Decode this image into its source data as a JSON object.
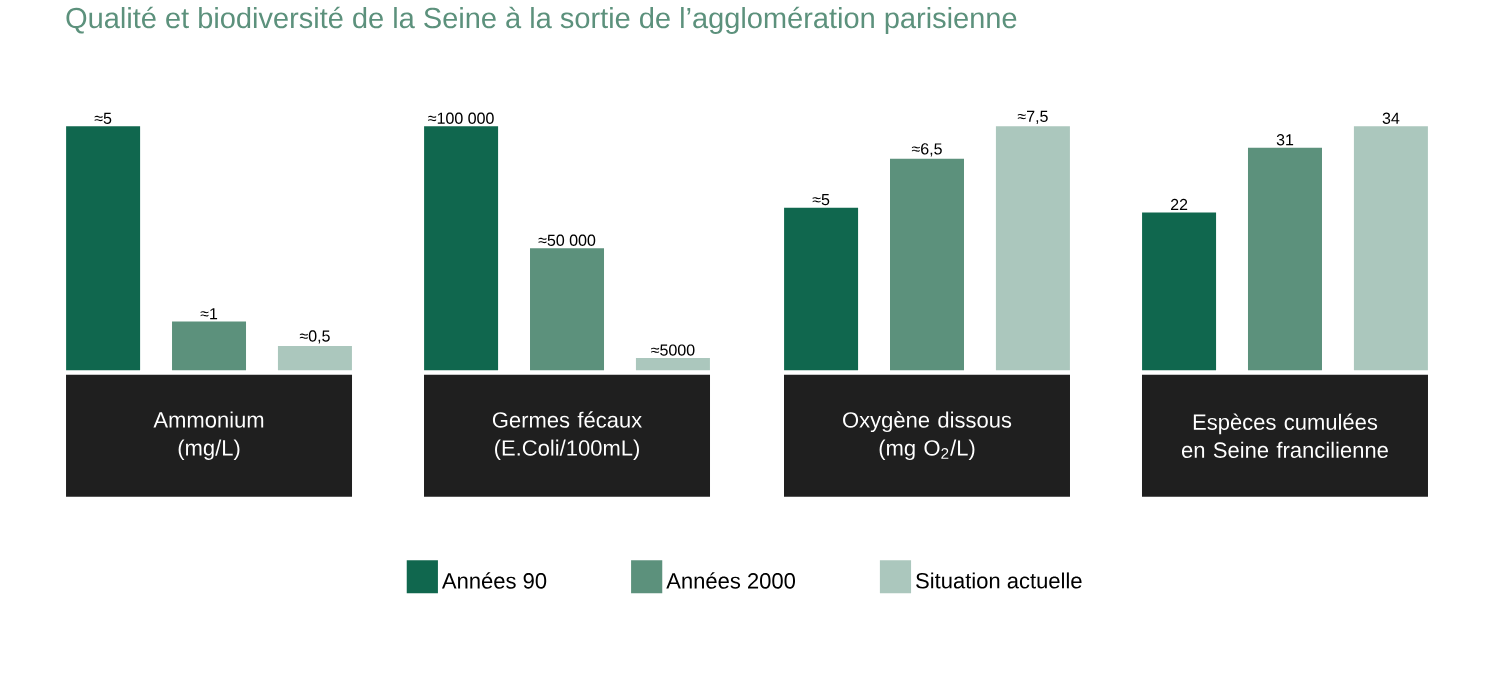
{
  "chart_data": [
    {
      "type": "bar",
      "title": "Qualité et biodiversité de la Seine à la sortie de l’agglomération parisienne",
      "xlabel": "Ammonium (mg/L)",
      "categories": [
        null
      ],
      "legend": "bottom",
      "series": [
        {
          "name": "Années 90",
          "color": "#10674e",
          "values": [
            5
          ],
          "value_labels": [
            "≈5"
          ]
        },
        {
          "name": "Années 2000",
          "color": "#5c917c",
          "values": [
            1
          ],
          "value_labels": [
            "≈1"
          ]
        },
        {
          "name": "Situation actuelle",
          "color": "#abc7bd",
          "values": [
            0.5
          ],
          "value_labels": [
            "≈0,5"
          ]
        }
      ]
    },
    {
      "type": "bar",
      "xlabel": "Germes fécaux (E.Coli/100mL)",
      "categories": [
        null
      ],
      "series": [
        {
          "color": "#10674e",
          "values": [
            100000
          ],
          "value_labels": [
            "≈100 000"
          ]
        },
        {
          "color": "#5c917c",
          "values": [
            50000
          ],
          "value_labels": [
            "≈50 000"
          ]
        },
        {
          "color": "#abc7bd",
          "values": [
            5000
          ],
          "value_labels": [
            "≈5000"
          ]
        }
      ]
    },
    {
      "type": "bar",
      "xlabel": "Oxygène dissous (mg O$_{2}$/L)",
      "categories": [
        null
      ],
      "series": [
        {
          "color": "#10674e",
          "values": [
            5
          ],
          "value_labels": [
            "≈5"
          ]
        },
        {
          "color": "#5c917c",
          "values": [
            6.5
          ],
          "value_labels": [
            "≈6,5"
          ]
        },
        {
          "color": "#abc7bd",
          "values": [
            7.5
          ],
          "value_labels": [
            "≈7,5"
          ]
        }
      ]
    },
    {
      "type": "bar",
      "xlabel": "Espèces cumulées en Seine francilienne",
      "categories": [
        null
      ],
      "series": [
        {
          "color": "#10674e",
          "values": [
            22
          ],
          "value_labels": [
            "22"
          ]
        },
        {
          "color": "#5c917c",
          "values": [
            31
          ],
          "value_labels": [
            "31"
          ]
        },
        {
          "color": "#abc7bd",
          "values": [
            34
          ],
          "value_labels": [
            "34"
          ]
        }
      ]
    }
  ]
}
